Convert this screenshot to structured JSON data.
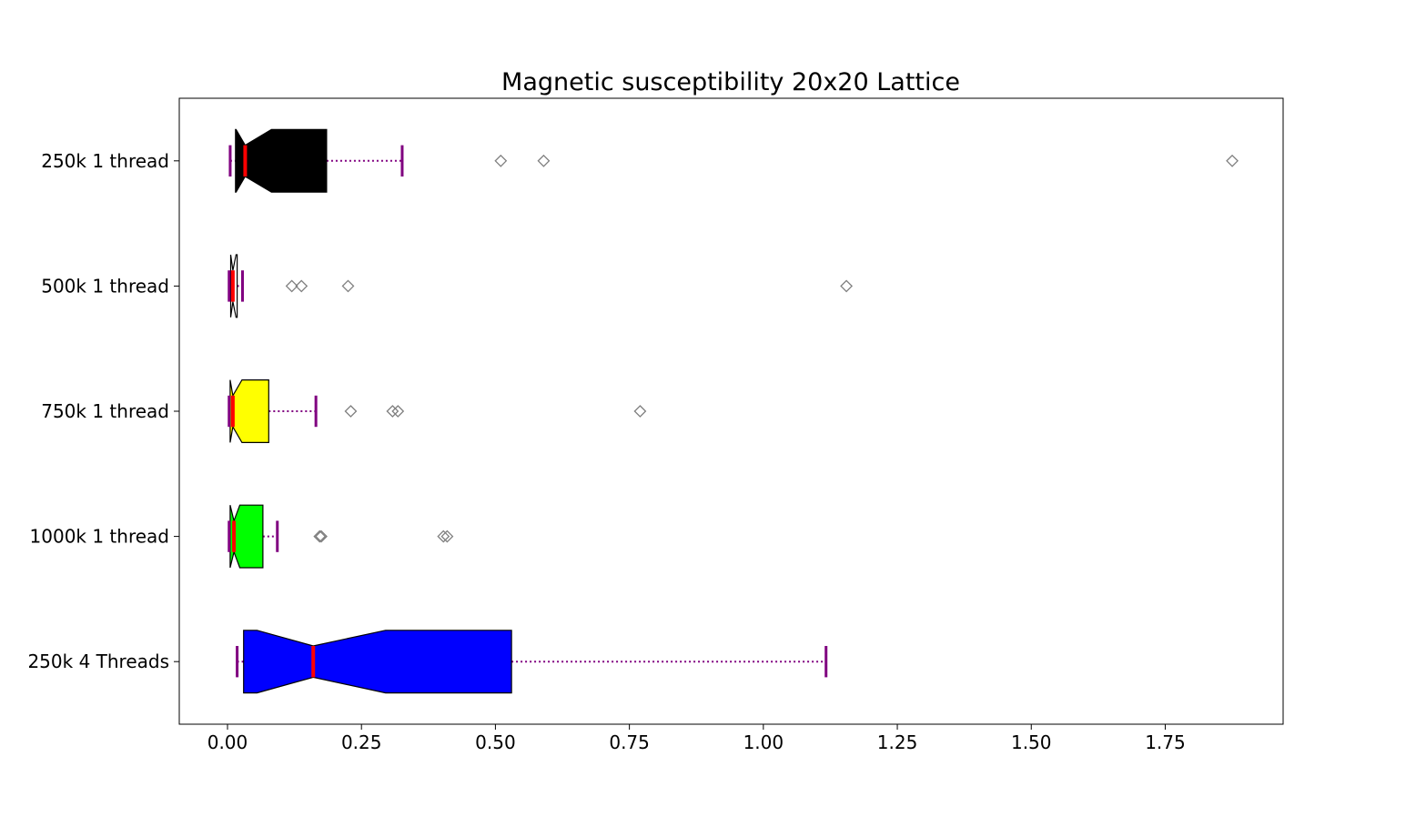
{
  "chart_data": {
    "type": "box",
    "orientation": "horizontal",
    "notched": true,
    "title": "Magnetic susceptibility 20x20 Lattice",
    "xlabel": "",
    "ylabel": "",
    "xlim": [
      -0.09,
      1.97
    ],
    "x_ticks": [
      0.0,
      0.25,
      0.5,
      0.75,
      1.0,
      1.25,
      1.5,
      1.75
    ],
    "x_tick_labels": [
      "0.00",
      "0.25",
      "0.50",
      "0.75",
      "1.00",
      "1.25",
      "1.50",
      "1.75"
    ],
    "grid": false,
    "legend": "none",
    "styles": {
      "median_color": "#ff0000",
      "whisker_color": "#800080",
      "whisker_style": "dotted",
      "cap_color": "#800080",
      "flier_marker": "diamond",
      "flier_color": "#7f7f7f",
      "box_edge_color": "#000000"
    },
    "categories": [
      "250k 1 thread",
      "500k 1 thread",
      "750k 1 thread",
      "1000k 1 thread",
      "250k 4 Threads"
    ],
    "boxes": [
      {
        "label": "250k 1 thread",
        "color": "#000000",
        "whisker_low": 0.005,
        "q1": 0.015,
        "notch_low": 0.016,
        "median": 0.033,
        "notch_high": 0.082,
        "q3": 0.185,
        "whisker_high": 0.326,
        "fliers": [
          0.51,
          0.59,
          1.875
        ]
      },
      {
        "label": "500k 1 thread",
        "color": "#ffffff",
        "whisker_low": 0.003,
        "q1": 0.006,
        "notch_low": 0.006,
        "median": 0.01,
        "notch_high": 0.016,
        "q3": 0.018,
        "whisker_high": 0.028,
        "fliers": [
          0.12,
          0.138,
          0.225,
          1.155
        ]
      },
      {
        "label": "750k 1 thread",
        "color": "#ffff00",
        "whisker_low": 0.003,
        "q1": 0.005,
        "notch_low": 0.005,
        "median": 0.01,
        "notch_high": 0.027,
        "q3": 0.077,
        "whisker_high": 0.165,
        "fliers": [
          0.23,
          0.308,
          0.318,
          0.77
        ]
      },
      {
        "label": "1000k 1 thread",
        "color": "#00ff00",
        "whisker_low": 0.003,
        "q1": 0.005,
        "notch_low": 0.005,
        "median": 0.012,
        "notch_high": 0.023,
        "q3": 0.066,
        "whisker_high": 0.093,
        "fliers": [
          0.172,
          0.175,
          0.403,
          0.41
        ]
      },
      {
        "label": "250k 4 Threads",
        "color": "#0000ff",
        "whisker_low": 0.018,
        "q1": 0.03,
        "notch_low": 0.055,
        "median": 0.16,
        "notch_high": 0.295,
        "q3": 0.53,
        "whisker_high": 1.117,
        "fliers": []
      }
    ]
  }
}
